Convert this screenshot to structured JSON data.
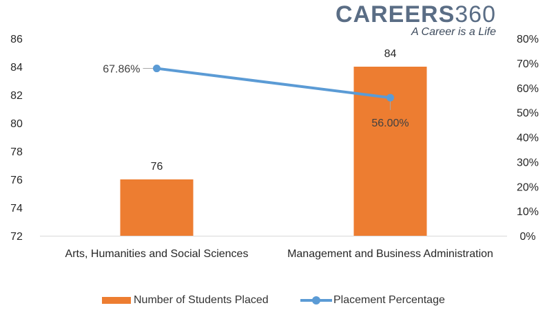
{
  "logo": {
    "brand": "CAREERS",
    "brand_num": "360",
    "tagline": "A Career is a Life"
  },
  "legend": {
    "bar_label": "Number of Students Placed",
    "line_label": "Placement Percentage"
  },
  "colors": {
    "bar": "#ED7D31",
    "line": "#5B9BD5",
    "axis_text": "#262626",
    "label_text": "#404040"
  },
  "chart_data": {
    "type": "bar",
    "categories": [
      "Arts, Humanities and Social Sciences",
      "Management and Business Administration"
    ],
    "series": [
      {
        "name": "Number of Students Placed",
        "type": "bar",
        "axis": "left",
        "values": [
          76,
          84
        ],
        "labels": [
          "76",
          "84"
        ]
      },
      {
        "name": "Placement Percentage",
        "type": "line",
        "axis": "right",
        "values": [
          67.86,
          56.0
        ],
        "labels": [
          "67.86%",
          "56.00%"
        ]
      }
    ],
    "y_left": {
      "lim": [
        72,
        86
      ],
      "ticks": [
        "72",
        "74",
        "76",
        "78",
        "80",
        "82",
        "84",
        "86"
      ]
    },
    "y_right": {
      "lim": [
        0,
        80
      ],
      "ticks": [
        "0%",
        "10%",
        "20%",
        "30%",
        "40%",
        "50%",
        "60%",
        "70%",
        "80%"
      ]
    },
    "grid": false,
    "legend_position": "bottom"
  }
}
